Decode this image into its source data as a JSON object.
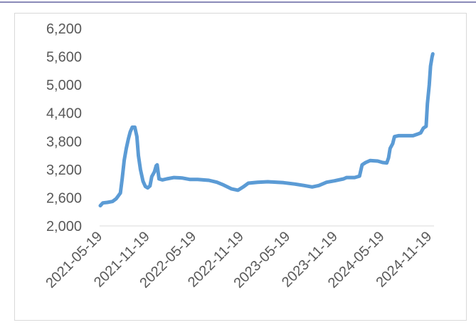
{
  "chart_data": {
    "type": "line",
    "title": "",
    "xlabel": "",
    "ylabel": "",
    "ylim": [
      2000,
      6200
    ],
    "yticks": [
      "6,200",
      "5,600",
      "5,000",
      "4,400",
      "3,800",
      "3,200",
      "2,600",
      "2,000"
    ],
    "ytick_values": [
      6200,
      5600,
      5000,
      4400,
      3800,
      3200,
      2600,
      2000
    ],
    "xticks": [
      "2021-05-19",
      "2021-11-19",
      "2022-05-19",
      "2022-11-19",
      "2023-05-19",
      "2023-11-19",
      "2024-05-19",
      "2024-11-19"
    ],
    "grid": false,
    "legend": "none",
    "color": "#5b9bd5",
    "series": [
      {
        "values": [
          [
            "2021-05-19",
            2430
          ],
          [
            "2021-05-29",
            2490
          ],
          [
            "2021-06-15",
            2500
          ],
          [
            "2021-07-05",
            2520
          ],
          [
            "2021-07-20",
            2580
          ],
          [
            "2021-08-05",
            2700
          ],
          [
            "2021-08-12",
            3000
          ],
          [
            "2021-08-20",
            3400
          ],
          [
            "2021-08-28",
            3650
          ],
          [
            "2021-09-05",
            3850
          ],
          [
            "2021-09-12",
            4000
          ],
          [
            "2021-09-20",
            4100
          ],
          [
            "2021-09-30",
            4100
          ],
          [
            "2021-10-08",
            3900
          ],
          [
            "2021-10-14",
            3500
          ],
          [
            "2021-10-22",
            3200
          ],
          [
            "2021-11-01",
            2950
          ],
          [
            "2021-11-10",
            2840
          ],
          [
            "2021-11-19",
            2810
          ],
          [
            "2021-11-28",
            2850
          ],
          [
            "2021-12-05",
            3050
          ],
          [
            "2021-12-15",
            3150
          ],
          [
            "2021-12-22",
            3280
          ],
          [
            "2021-12-26",
            3300
          ],
          [
            "2022-01-02",
            3000
          ],
          [
            "2022-01-15",
            2980
          ],
          [
            "2022-02-01",
            3000
          ],
          [
            "2022-03-01",
            3030
          ],
          [
            "2022-04-01",
            3020
          ],
          [
            "2022-05-01",
            2990
          ],
          [
            "2022-06-01",
            2990
          ],
          [
            "2022-07-15",
            2970
          ],
          [
            "2022-08-15",
            2930
          ],
          [
            "2022-09-10",
            2870
          ],
          [
            "2022-10-10",
            2790
          ],
          [
            "2022-11-05",
            2760
          ],
          [
            "2022-11-25",
            2830
          ],
          [
            "2022-12-15",
            2910
          ],
          [
            "2023-01-20",
            2930
          ],
          [
            "2023-03-01",
            2940
          ],
          [
            "2023-05-01",
            2920
          ],
          [
            "2023-06-15",
            2890
          ],
          [
            "2023-07-20",
            2860
          ],
          [
            "2023-08-20",
            2830
          ],
          [
            "2023-09-15",
            2860
          ],
          [
            "2023-10-15",
            2930
          ],
          [
            "2023-11-15",
            2960
          ],
          [
            "2023-12-20",
            3000
          ],
          [
            "2024-01-01",
            3030
          ],
          [
            "2024-02-01",
            3030
          ],
          [
            "2024-02-20",
            3060
          ],
          [
            "2024-03-01",
            3300
          ],
          [
            "2024-03-15",
            3350
          ],
          [
            "2024-04-01",
            3390
          ],
          [
            "2024-05-01",
            3380
          ],
          [
            "2024-05-20",
            3350
          ],
          [
            "2024-06-05",
            3340
          ],
          [
            "2024-06-12",
            3450
          ],
          [
            "2024-06-18",
            3650
          ],
          [
            "2024-06-28",
            3750
          ],
          [
            "2024-07-05",
            3900
          ],
          [
            "2024-07-20",
            3920
          ],
          [
            "2024-09-15",
            3920
          ],
          [
            "2024-10-01",
            3950
          ],
          [
            "2024-10-15",
            3980
          ],
          [
            "2024-10-25",
            4080
          ],
          [
            "2024-11-05",
            4120
          ],
          [
            "2024-11-10",
            4600
          ],
          [
            "2024-11-17",
            5000
          ],
          [
            "2024-11-22",
            5400
          ],
          [
            "2024-11-28",
            5600
          ],
          [
            "2024-12-01",
            5660
          ]
        ]
      }
    ]
  }
}
